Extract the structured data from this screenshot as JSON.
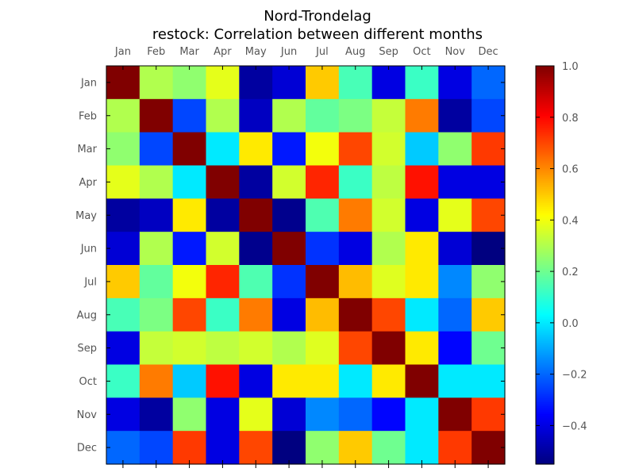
{
  "chart_data": {
    "type": "heatmap",
    "title": "Nord-Trondelag",
    "subtitle": "restock: Correlation between different months",
    "x_categories": [
      "Jan",
      "Feb",
      "Mar",
      "Apr",
      "May",
      "Jun",
      "Jul",
      "Aug",
      "Sep",
      "Oct",
      "Nov",
      "Dec"
    ],
    "y_categories": [
      "Jan",
      "Feb",
      "Mar",
      "Apr",
      "May",
      "Jun",
      "Jul",
      "Aug",
      "Sep",
      "Oct",
      "Nov",
      "Dec"
    ],
    "values": [
      [
        1.0,
        0.3,
        0.25,
        0.38,
        -0.5,
        -0.42,
        0.5,
        0.14,
        -0.4,
        0.12,
        -0.4,
        -0.2
      ],
      [
        0.3,
        1.0,
        -0.25,
        0.3,
        -0.45,
        0.3,
        0.18,
        0.22,
        0.33,
        0.62,
        -0.5,
        -0.25
      ],
      [
        0.25,
        -0.25,
        1.0,
        0.0,
        0.45,
        -0.32,
        0.4,
        0.7,
        0.35,
        -0.05,
        0.25,
        0.72
      ],
      [
        0.38,
        0.3,
        0.0,
        1.0,
        -0.5,
        0.35,
        0.75,
        0.12,
        0.32,
        0.78,
        -0.4,
        -0.4
      ],
      [
        -0.5,
        -0.45,
        0.45,
        -0.5,
        1.0,
        -0.53,
        0.15,
        0.62,
        0.35,
        -0.4,
        0.38,
        0.7
      ],
      [
        -0.42,
        0.3,
        -0.32,
        0.35,
        -0.53,
        1.0,
        -0.28,
        -0.4,
        0.3,
        0.45,
        -0.42,
        -0.55
      ],
      [
        0.5,
        0.18,
        0.4,
        0.75,
        0.15,
        -0.28,
        1.0,
        0.52,
        0.37,
        0.45,
        -0.15,
        0.25
      ],
      [
        0.14,
        0.22,
        0.7,
        0.12,
        0.62,
        -0.4,
        0.52,
        1.0,
        0.7,
        0.0,
        -0.2,
        0.5
      ],
      [
        -0.4,
        0.33,
        0.35,
        0.32,
        0.35,
        0.3,
        0.37,
        0.7,
        1.0,
        0.45,
        -0.35,
        0.2
      ],
      [
        0.12,
        0.62,
        -0.05,
        0.78,
        -0.4,
        0.45,
        0.45,
        0.0,
        0.45,
        1.0,
        0.0,
        0.0
      ],
      [
        -0.4,
        -0.5,
        0.25,
        -0.4,
        0.38,
        -0.42,
        -0.15,
        -0.2,
        -0.35,
        0.0,
        1.0,
        0.72
      ],
      [
        -0.2,
        -0.25,
        0.72,
        -0.4,
        0.7,
        -0.55,
        0.25,
        0.5,
        0.2,
        0.0,
        0.72,
        1.0
      ]
    ],
    "colormap": "jet",
    "color_range": [
      -0.55,
      1.0
    ],
    "colorbar_ticks": [
      -0.4,
      -0.2,
      0.0,
      0.2,
      0.4,
      0.6,
      0.8,
      1.0
    ],
    "colorbar_tick_labels": [
      "−0.4",
      "−0.2",
      "0.0",
      "0.2",
      "0.4",
      "0.6",
      "0.8",
      "1.0"
    ],
    "x_tick_position": "top",
    "grid": false
  }
}
